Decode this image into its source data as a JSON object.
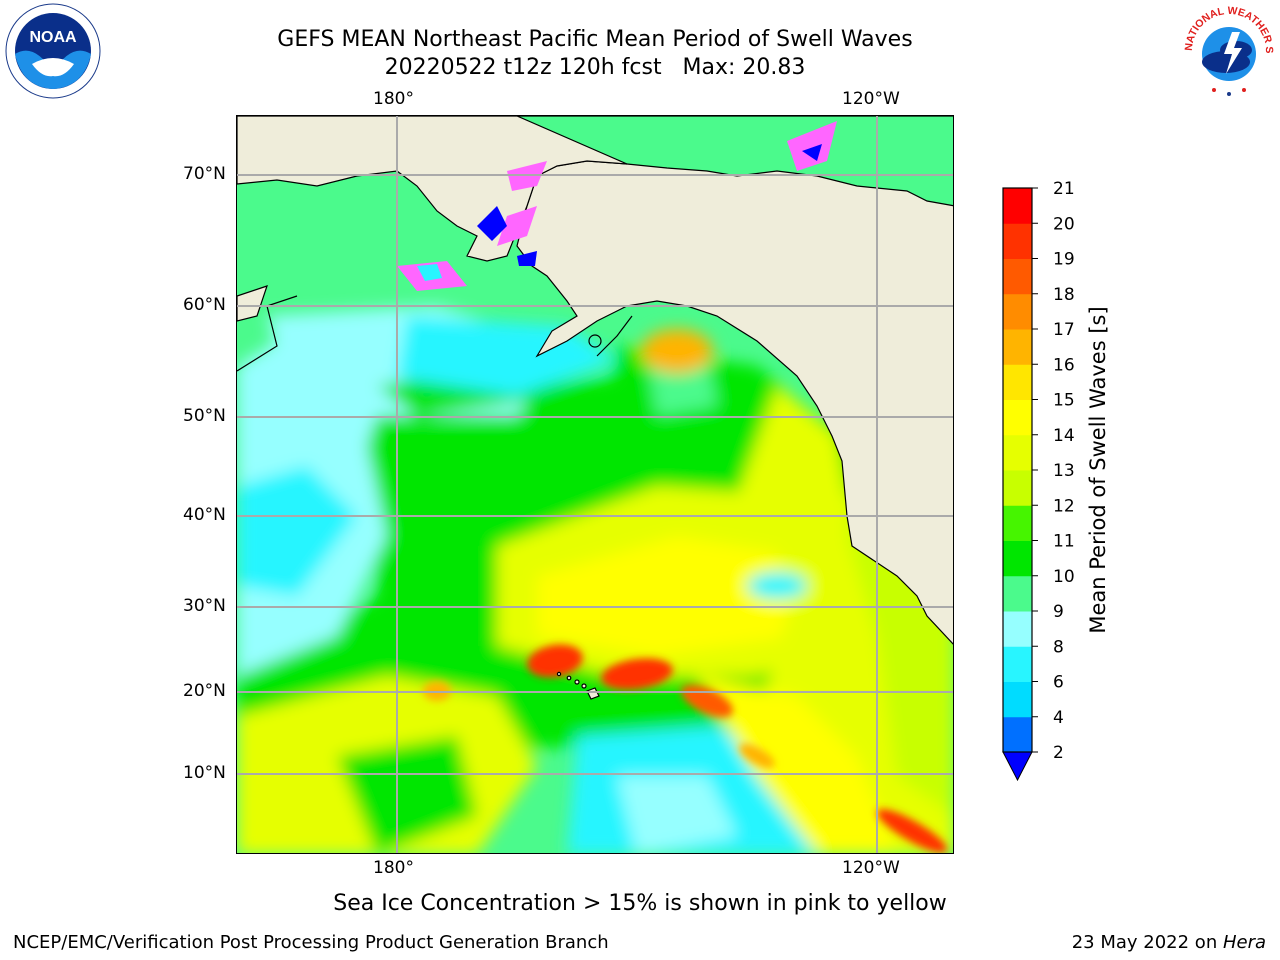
{
  "title": {
    "line1": "GEFS MEAN Northeast Pacific Mean Period of Swell Waves",
    "line2": "20220522 t12z 120h fcst   Max: 20.83"
  },
  "logos": {
    "left": {
      "icon": "noaa-logo-icon",
      "text": "NOAA"
    },
    "right": {
      "icon": "nws-logo-icon",
      "text": "NATIONAL WEATHER SERVICE"
    }
  },
  "map": {
    "lon_labels_top": [
      "180°",
      "120°W"
    ],
    "lon_labels_bottom": [
      "180°",
      "120°W"
    ],
    "lat_labels": [
      "70°N",
      "60°N",
      "50°N",
      "40°N",
      "30°N",
      "20°N",
      "10°N"
    ],
    "land_color": "#efedda",
    "grid_color": "#aaaaaa"
  },
  "colorbar": {
    "label": "Mean Period of Swell Waves [s]",
    "ticks": [
      "2",
      "4",
      "6",
      "8",
      "9",
      "10",
      "11",
      "12",
      "13",
      "14",
      "15",
      "16",
      "17",
      "18",
      "19",
      "20",
      "21"
    ],
    "colors": [
      "#0070ff",
      "#00dcff",
      "#28f5ff",
      "#96ffff",
      "#4bfa8c",
      "#00e600",
      "#46f500",
      "#c8ff00",
      "#e6ff00",
      "#ffff00",
      "#ffe600",
      "#ffb400",
      "#ff8c00",
      "#ff5a00",
      "#ff3200",
      "#ff0000"
    ],
    "under_color": "#0000ff"
  },
  "ice_note": "Sea Ice Concentration > 15% is shown in pink to yellow",
  "footer": {
    "left": "NCEP/EMC/Verification Post Processing Product Generation Branch",
    "right_prefix": "23 May 2022 on ",
    "right_host": "Hera"
  }
}
